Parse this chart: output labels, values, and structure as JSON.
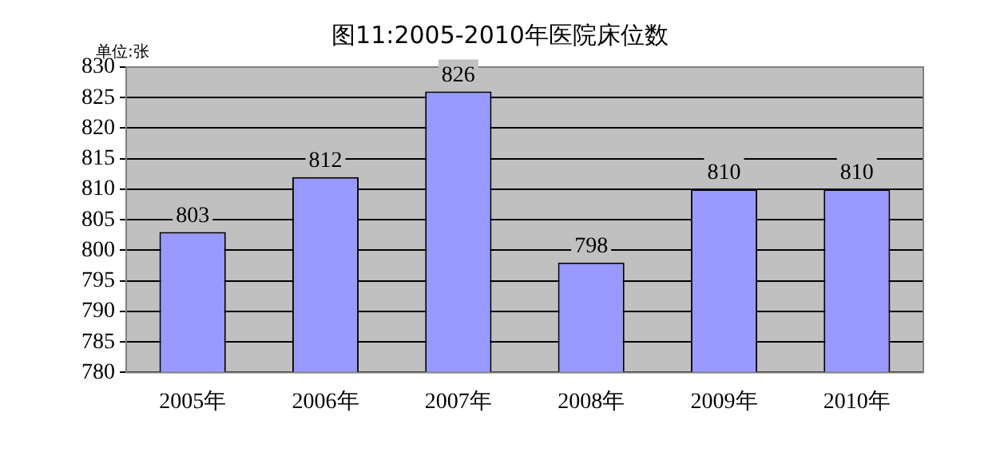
{
  "chart_data": {
    "type": "bar",
    "title": "图11:2005-2010年医院床位数",
    "ylabel": "单位:张",
    "categories": [
      "2005年",
      "2006年",
      "2007年",
      "2008年",
      "2009年",
      "2010年"
    ],
    "values": [
      803,
      812,
      826,
      798,
      810,
      810
    ],
    "color": "#9999ff",
    "ylim": [
      780,
      830
    ],
    "yticks": [
      780,
      785,
      790,
      795,
      800,
      805,
      810,
      815,
      820,
      825,
      830
    ],
    "grid": "y",
    "legend": false,
    "data_labels": true
  }
}
